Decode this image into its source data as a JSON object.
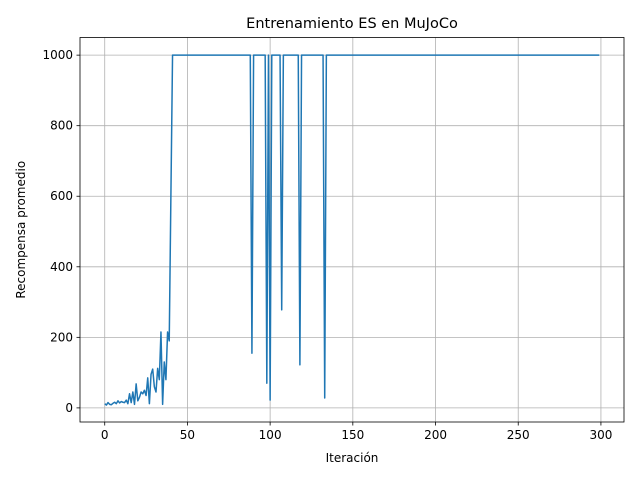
{
  "chart_data": {
    "type": "line",
    "title": "Entrenamiento ES en MuJoCo",
    "xlabel": "Iteración",
    "ylabel": "Recompensa promedio",
    "xlim": [
      -14.95,
      313.95
    ],
    "ylim": [
      -40,
      1050
    ],
    "xticks": [
      0,
      50,
      100,
      150,
      200,
      250,
      300
    ],
    "yticks": [
      0,
      200,
      400,
      600,
      800,
      1000
    ],
    "grid": true,
    "line_color": "#1f77b4",
    "series": [
      {
        "x": [
          0,
          1,
          2,
          3,
          4,
          5,
          6,
          7,
          8,
          9,
          10,
          11,
          12,
          13,
          14,
          15,
          16,
          17,
          18,
          19,
          20,
          21,
          22,
          23,
          24,
          25,
          26,
          27,
          28,
          29,
          30,
          31,
          32,
          33,
          34,
          35,
          36,
          37,
          38,
          39,
          40,
          41,
          42,
          88,
          89,
          90,
          97,
          98,
          99,
          100,
          101,
          106,
          107,
          108,
          117,
          118,
          119,
          132,
          133,
          134,
          299
        ],
        "y": [
          12,
          8,
          15,
          10,
          9,
          13,
          16,
          12,
          20,
          14,
          18,
          16,
          15,
          22,
          12,
          40,
          15,
          45,
          10,
          68,
          20,
          30,
          45,
          40,
          50,
          35,
          85,
          12,
          95,
          110,
          60,
          45,
          112,
          80,
          215,
          10,
          130,
          80,
          215,
          190,
          600,
          1000,
          1000,
          1000,
          155,
          1000,
          1000,
          70,
          1000,
          22,
          1000,
          1000,
          278,
          1000,
          1000,
          122,
          1000,
          1000,
          28,
          1000,
          1000
        ]
      }
    ]
  }
}
